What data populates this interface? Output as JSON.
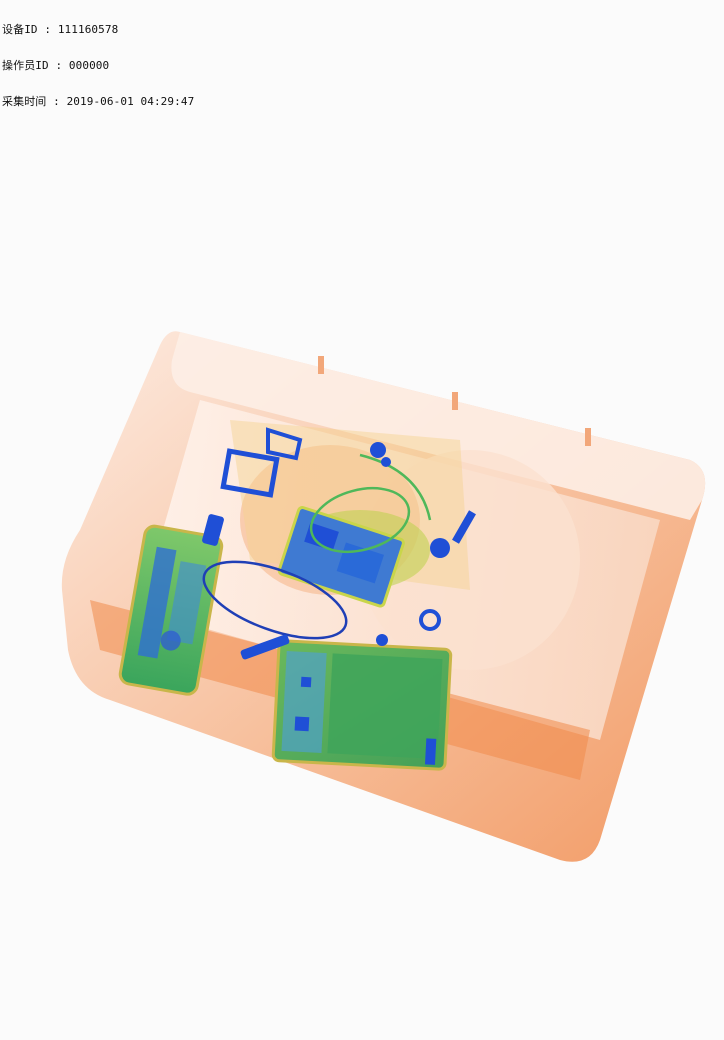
{
  "overlay": {
    "device_id": "设备ID : 111160578",
    "operator_id": "操作员ID : 000000",
    "capture_time": "采集时间 : 2019-06-01 04:29:47"
  },
  "scan": {
    "colors": {
      "background": "#fbfbfb",
      "organic_orange": "#f08a4b",
      "organic_light": "#f9d2b8",
      "mixed_green": "#4fb85a",
      "mixed_yellow": "#c9d54a",
      "metal_blue": "#1f4fd6",
      "metal_dark_blue": "#0b2a9a"
    },
    "icons": [
      "xray-tray-icon",
      "phone-icon",
      "tablet-icon",
      "wire-icon",
      "clip-icon"
    ]
  }
}
